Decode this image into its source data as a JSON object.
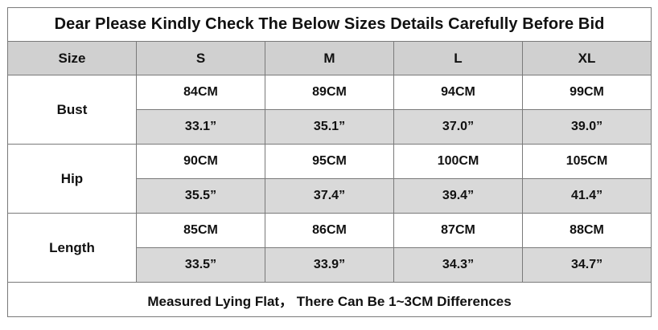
{
  "title": "Dear Please Kindly Check The Below Sizes Details Carefully Before Bid",
  "header": {
    "size_label": "Size",
    "sizes": [
      "S",
      "M",
      "L",
      "XL"
    ]
  },
  "rows": [
    {
      "label": "Bust",
      "cm": [
        "84CM",
        "89CM",
        "94CM",
        "99CM"
      ],
      "inch": [
        "33.1”",
        "35.1”",
        "37.0”",
        "39.0”"
      ]
    },
    {
      "label": "Hip",
      "cm": [
        "90CM",
        "95CM",
        "100CM",
        "105CM"
      ],
      "inch": [
        "35.5”",
        "37.4”",
        "39.4”",
        "41.4”"
      ]
    },
    {
      "label": "Length",
      "cm": [
        "85CM",
        "86CM",
        "87CM",
        "88CM"
      ],
      "inch": [
        "33.5”",
        "33.9”",
        "34.3”",
        "34.7”"
      ]
    }
  ],
  "footer_note": "Measured Lying Flat， There Can Be 1~3CM Differences",
  "colors": {
    "header_bg": "#d0d0d0",
    "inch_row_bg": "#d9d9d9",
    "border": "#7a7a7a"
  }
}
